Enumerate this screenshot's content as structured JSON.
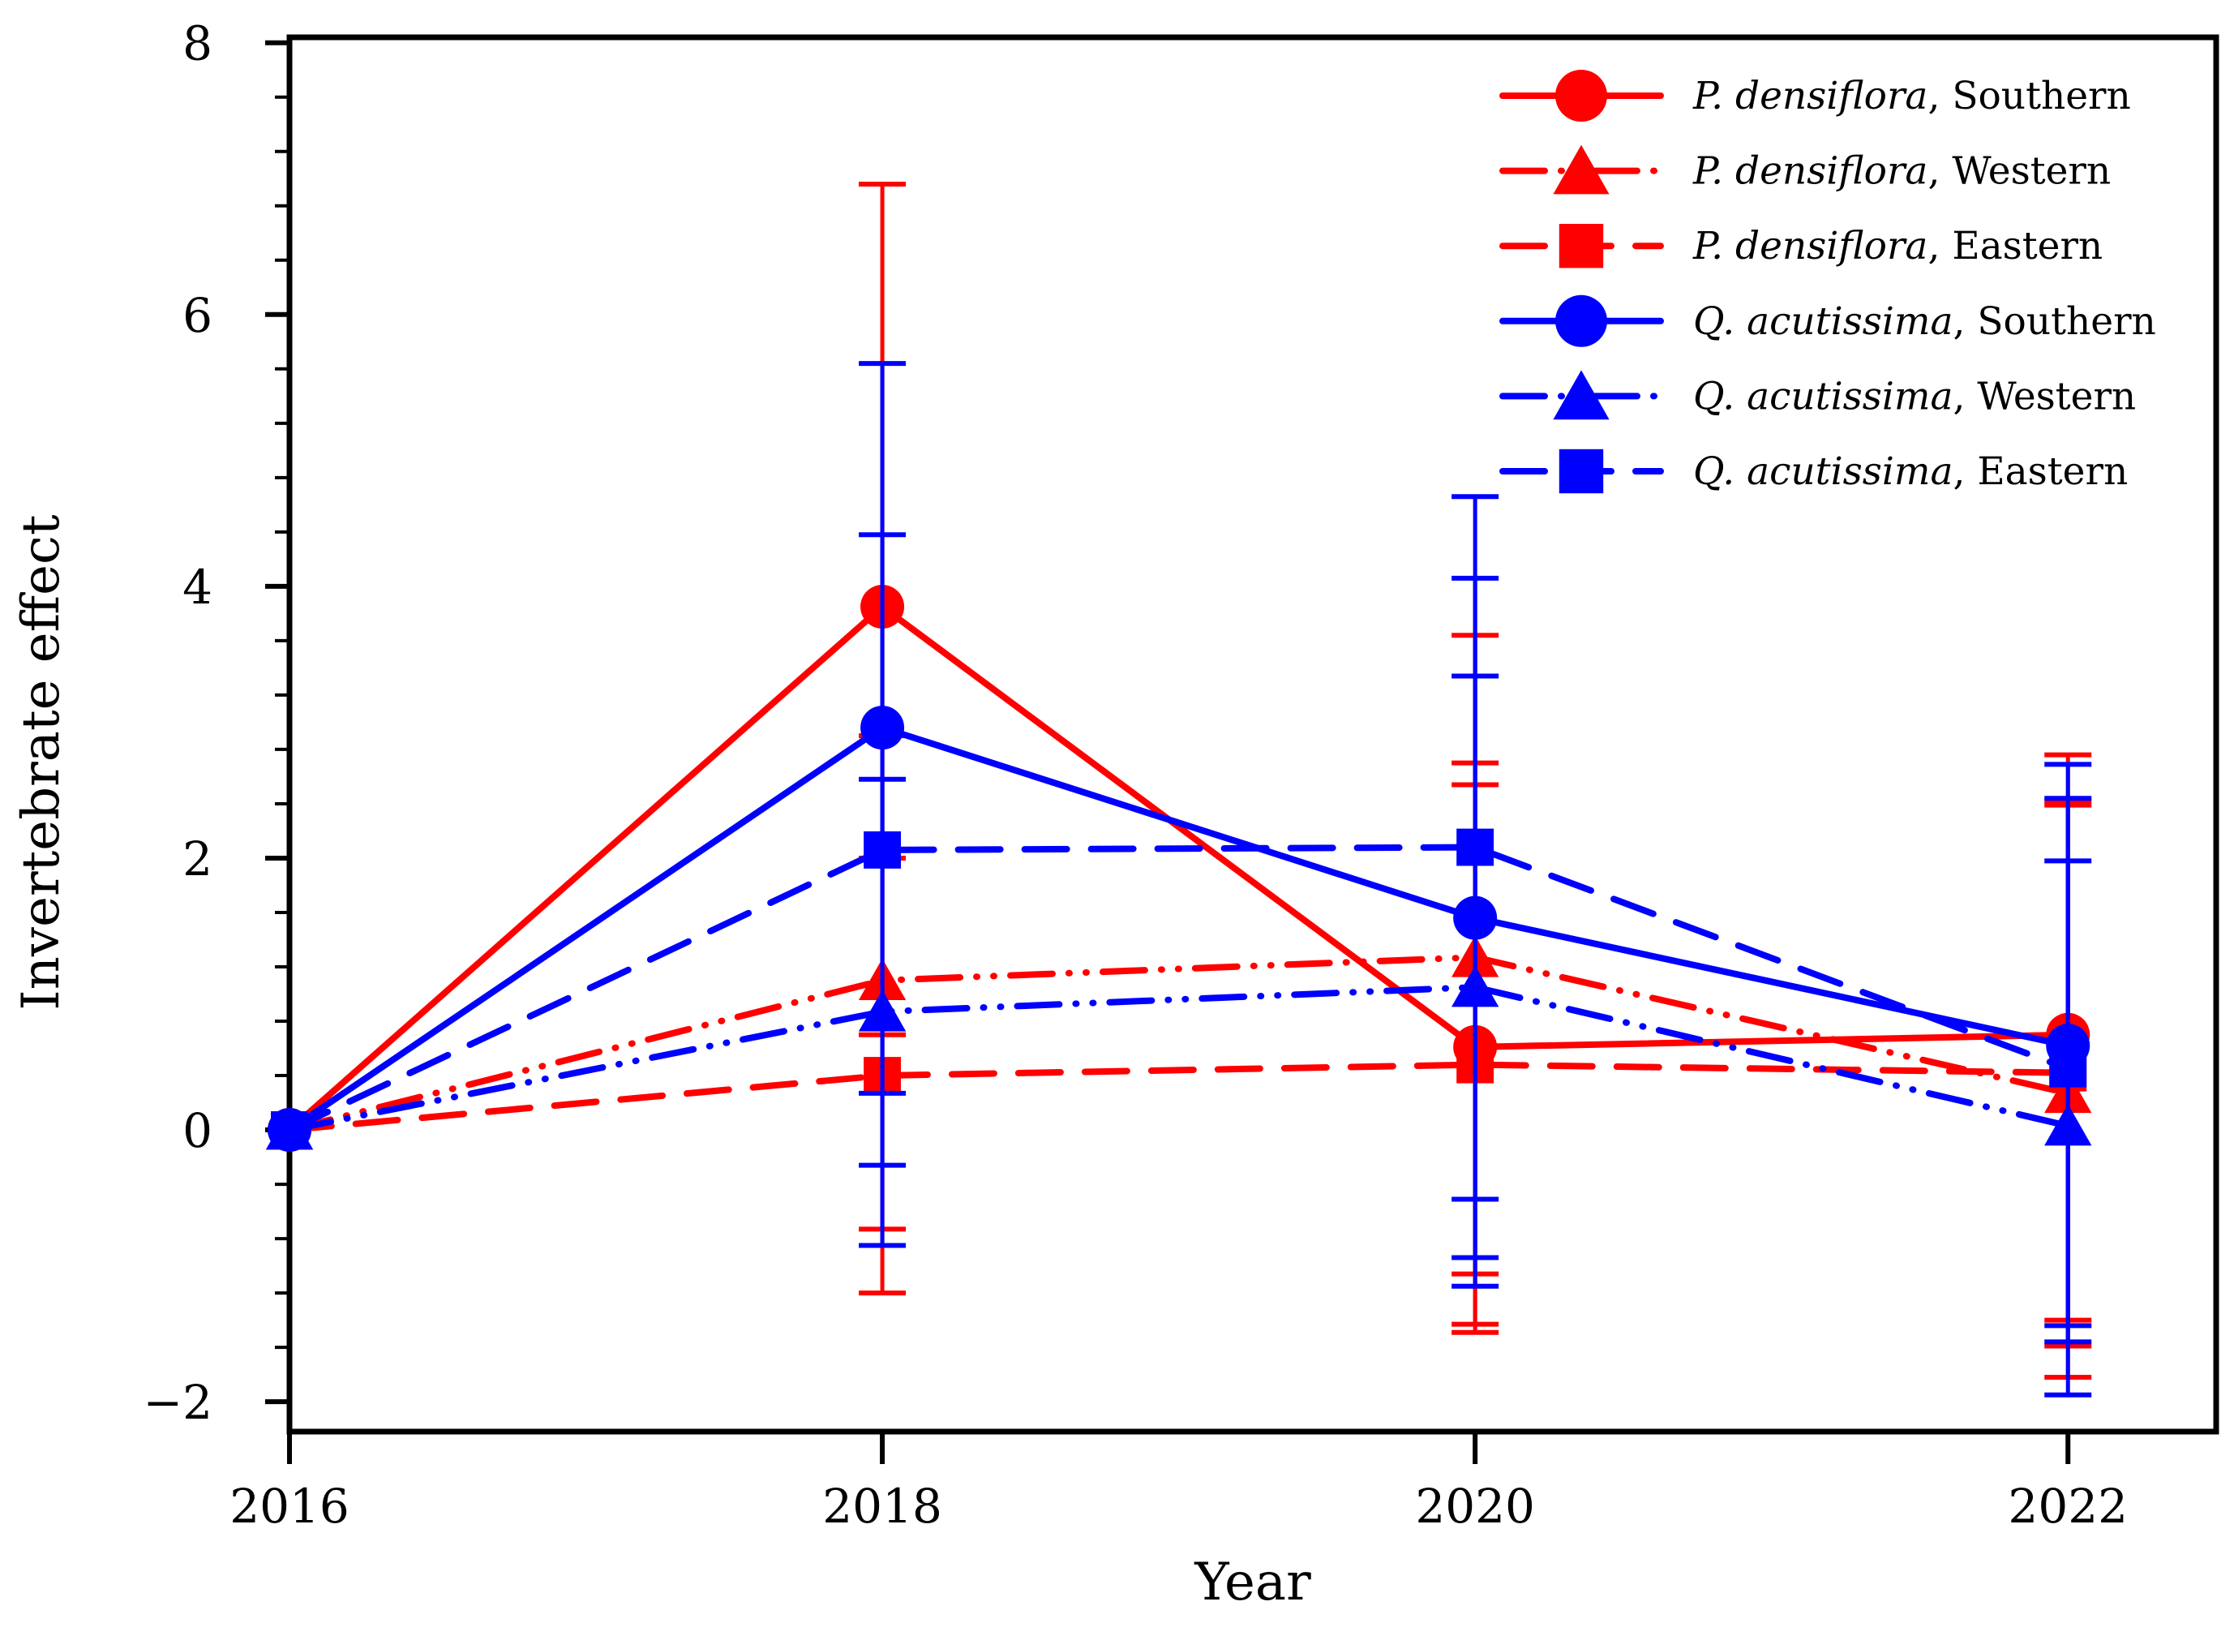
{
  "chart_data": {
    "type": "line",
    "title": "",
    "xlabel": "Year",
    "ylabel": "Invertebrate effect",
    "x": [
      2016,
      2018,
      2020,
      2022
    ],
    "xlim": [
      2016,
      2022.5
    ],
    "ylim": [
      -2.22,
      8.04
    ],
    "xticks": [
      2016,
      2018,
      2020,
      2022
    ],
    "xtick_labels": [
      "2016",
      "2018",
      "2020",
      "2022"
    ],
    "yticks": [
      -2,
      0,
      2,
      4,
      6,
      8
    ],
    "ytick_labels": [
      "−2",
      "0",
      "2",
      "4",
      "6",
      "8"
    ],
    "y_minor_step": 0.4,
    "grid": false,
    "legend_position": "top-right",
    "colors": {
      "p_densiflora": "#ff0000",
      "q_acutissima": "#0000ff"
    },
    "series": [
      {
        "name": "P. densiflora, Southern",
        "species": "P. densiflora",
        "region": ", Southern",
        "color": "#ff0000",
        "marker": "circle",
        "line": "solid",
        "values": [
          0,
          3.85,
          0.61,
          0.7
        ],
        "err_hi": [
          null,
          6.96,
          2.7,
          2.76
        ],
        "err_lo": [
          null,
          0.7,
          -1.43,
          -1.4
        ]
      },
      {
        "name": "P. densiflora, Western",
        "species": "P. densiflora",
        "region": ", Western",
        "color": "#ff0000",
        "marker": "triangle",
        "line": "dashdotdot",
        "values": [
          0,
          1.1,
          1.27,
          0.27
        ],
        "err_hi": [
          null,
          2.9,
          3.64,
          2.39
        ],
        "err_lo": [
          null,
          -0.73,
          -1.06,
          -1.82
        ]
      },
      {
        "name": "P. densiflora, Eastern",
        "species": "P. densiflora",
        "region": ", Eastern",
        "color": "#ff0000",
        "marker": "square",
        "line": "dashed",
        "values": [
          0,
          0.4,
          0.48,
          0.42
        ],
        "err_hi": [
          null,
          2.0,
          2.54,
          2.42
        ],
        "err_lo": [
          null,
          -1.2,
          -1.49,
          -1.59
        ]
      },
      {
        "name": "Q. acutissima, Southern",
        "species": "Q. acutissima",
        "region": ", Southern",
        "color": "#0000ff",
        "marker": "circle",
        "line": "solid",
        "values": [
          0,
          2.96,
          1.56,
          0.62
        ],
        "err_hi": [
          null,
          5.64,
          4.06,
          2.69
        ],
        "err_lo": [
          null,
          0.27,
          -0.94,
          -1.44
        ]
      },
      {
        "name": "Q. acutissima, Western",
        "species": "Q. acutissima",
        "region": ", Western",
        "color": "#0000ff",
        "marker": "triangle",
        "line": "dashdotdot",
        "values": [
          0,
          0.87,
          1.05,
          0.03
        ],
        "err_hi": [
          null,
          2.58,
          3.34,
          1.98
        ],
        "err_lo": [
          null,
          -0.85,
          -1.15,
          -1.95
        ]
      },
      {
        "name": "Q. acutissima, Eastern",
        "species": "Q. acutissima",
        "region": ", Eastern",
        "color": "#0000ff",
        "marker": "square",
        "line": "dashed",
        "values": [
          0,
          2.06,
          2.08,
          0.45
        ],
        "err_hi": [
          null,
          4.38,
          4.66,
          2.44
        ],
        "err_lo": [
          null,
          -0.26,
          -0.51,
          -1.56
        ]
      }
    ]
  }
}
